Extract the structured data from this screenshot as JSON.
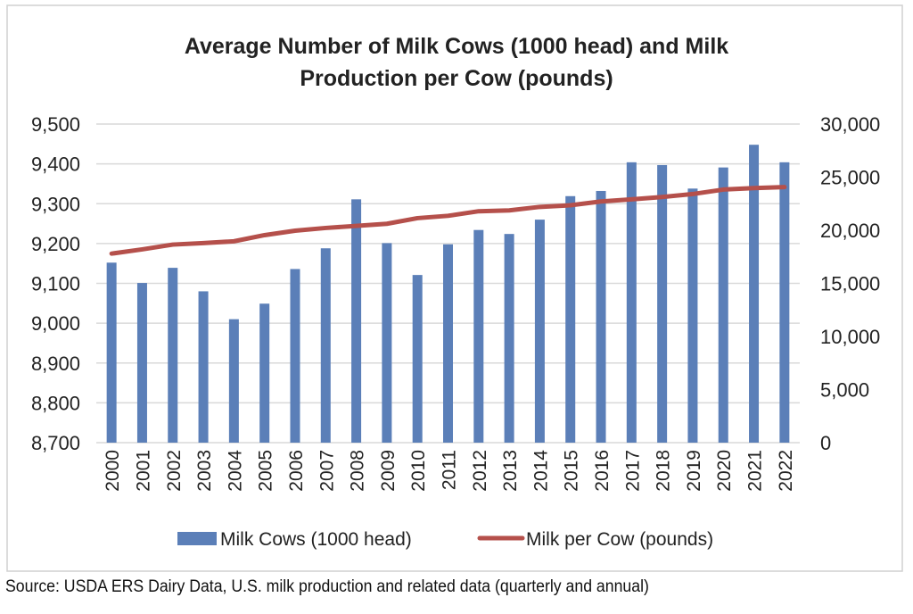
{
  "chart_data": {
    "type": "bar+line",
    "title_lines": [
      "Average Number of Milk Cows (1000 head) and Milk",
      "Production per Cow (pounds)"
    ],
    "categories": [
      "2000",
      "2001",
      "2002",
      "2003",
      "2004",
      "2005",
      "2006",
      "2007",
      "2008",
      "2009",
      "2010",
      "2011",
      "2012",
      "2013",
      "2014",
      "2015",
      "2016",
      "2017",
      "2018",
      "2019",
      "2020",
      "2021",
      "2022"
    ],
    "series": [
      {
        "name": "Milk Cows (1000 head)",
        "type": "bar",
        "axis": "left",
        "color": "#5b7fb8",
        "values": [
          9152,
          9101,
          9139,
          9080,
          9010,
          9049,
          9136,
          9188,
          9311,
          9201,
          9121,
          9198,
          9234,
          9224,
          9260,
          9319,
          9332,
          9404,
          9397,
          9338,
          9391,
          9448,
          9404
        ]
      },
      {
        "name": "Milk per Cow (pounds)",
        "type": "line",
        "axis": "right",
        "color": "#b5504b",
        "values": [
          17800,
          18200,
          18650,
          18790,
          18960,
          19540,
          19960,
          20215,
          20410,
          20610,
          21140,
          21360,
          21790,
          21870,
          22200,
          22350,
          22710,
          22910,
          23130,
          23410,
          23830,
          23970,
          24060
        ]
      }
    ],
    "left_axis": {
      "ylim": [
        8700,
        9500
      ],
      "ticks": [
        "8,700",
        "8,800",
        "8,900",
        "9,000",
        "9,100",
        "9,200",
        "9,300",
        "9,400",
        "9,500"
      ]
    },
    "right_axis": {
      "ylim": [
        0,
        30000
      ],
      "ticks": [
        "0",
        "5,000",
        "10,000",
        "15,000",
        "20,000",
        "25,000",
        "30,000"
      ]
    },
    "grid": true,
    "legend_placement": "bottom"
  },
  "source": "Source: USDA ERS Dairy Data, U.S. milk production and related data (quarterly and annual)"
}
